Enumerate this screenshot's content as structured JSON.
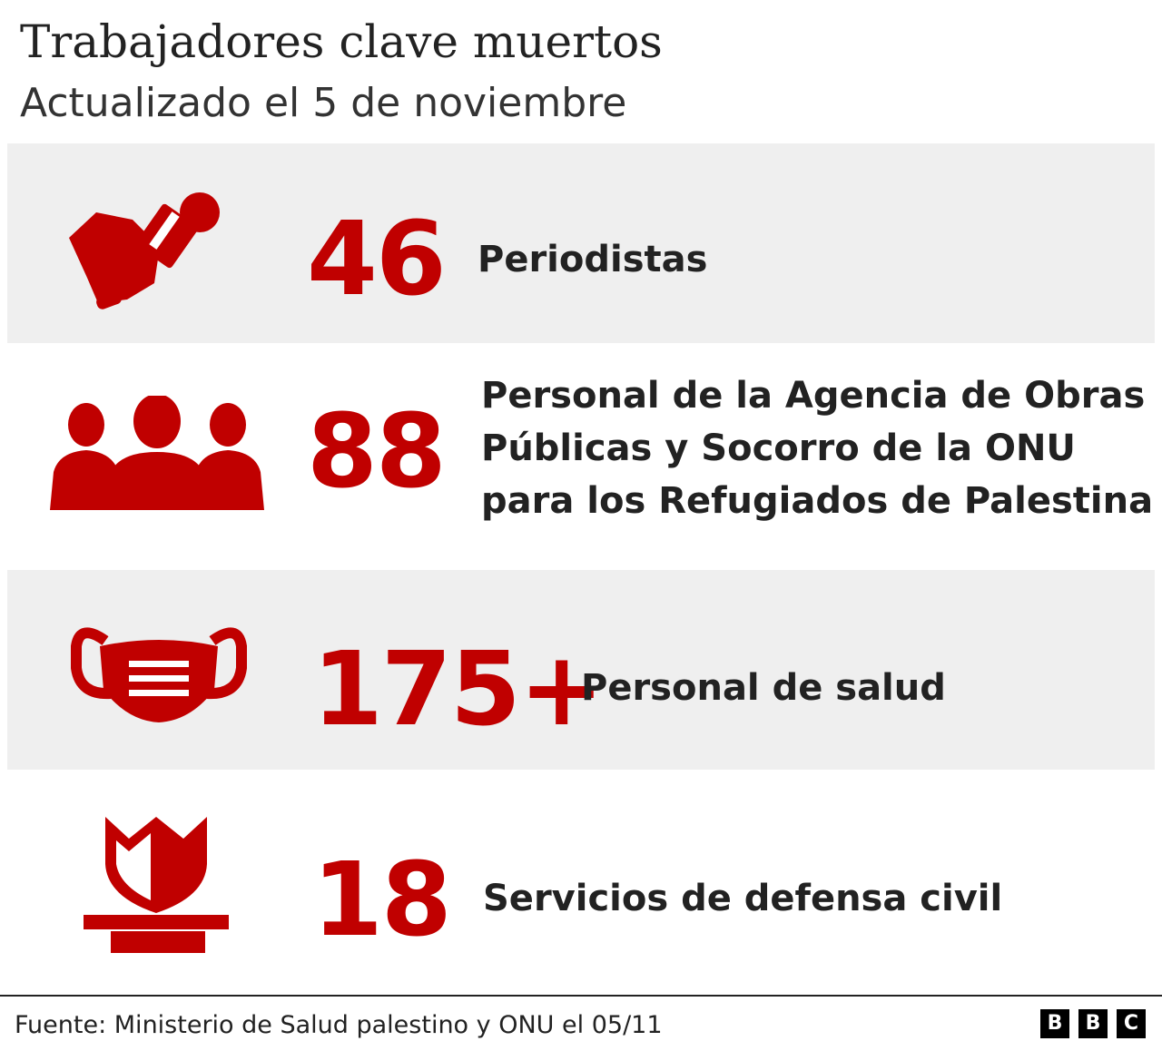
{
  "header": {
    "title": "Trabajadores clave muertos",
    "subtitle": "Actualizado el 5 de noviembre"
  },
  "rows": [
    {
      "icon": "microphone-icon",
      "number": "46",
      "label_lines": [
        "Periodistas"
      ]
    },
    {
      "icon": "people-group-icon",
      "number": "88",
      "label_lines": [
        "Personal de la Agencia de Obras",
        "Públicas y Socorro de la ONU",
        "para los Refugiados de Palestina"
      ]
    },
    {
      "icon": "face-mask-icon",
      "number": "175+",
      "label_lines": [
        "Personal de salud"
      ]
    },
    {
      "icon": "shield-icon",
      "number": "18",
      "label_lines": [
        "Servicios de defensa civil"
      ]
    }
  ],
  "colors": {
    "accent": "#c00000",
    "band": "#efefef",
    "text": "#222222"
  },
  "footer": {
    "source": "Fuente: Ministerio de Salud palestino y ONU el 05/11",
    "logo_letters": [
      "B",
      "B",
      "C"
    ]
  }
}
